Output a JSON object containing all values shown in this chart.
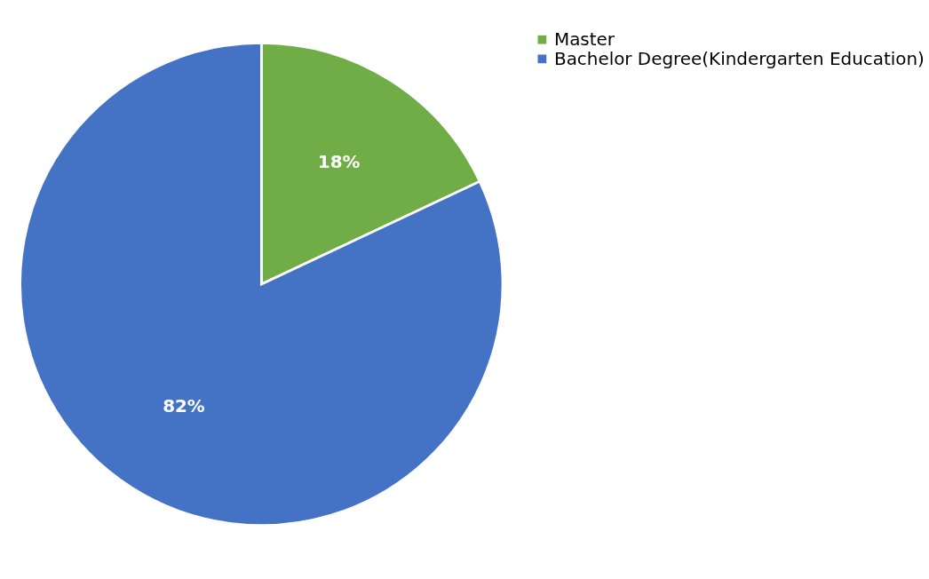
{
  "chart_data": {
    "type": "pie",
    "categories": [
      "Master",
      "Bachelor Degree(Kindergarten Education)"
    ],
    "values": [
      18,
      82
    ],
    "colors": [
      "#70ad47",
      "#4472c4"
    ],
    "value_labels": [
      "18%",
      "82%"
    ],
    "legend": "right"
  }
}
